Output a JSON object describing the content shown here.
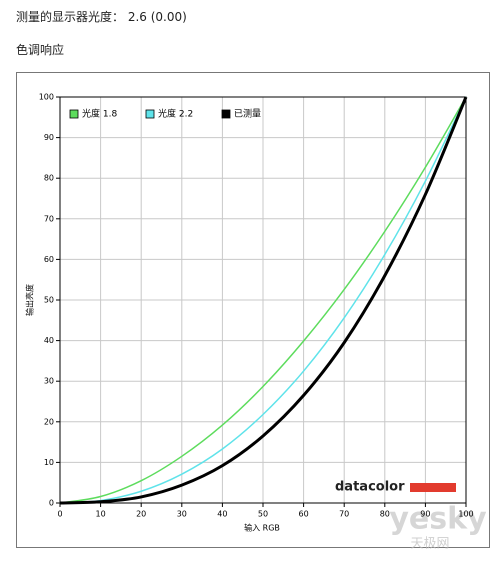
{
  "header": {
    "title": "测量的显示器光度：",
    "value": "2.6 (0.00)",
    "section": "色调响应"
  },
  "chart_data": {
    "type": "line",
    "xlabel": "输入 RGB",
    "ylabel": "输出亮度",
    "x": [
      0,
      10,
      20,
      30,
      40,
      50,
      60,
      70,
      80,
      90,
      100
    ],
    "series": [
      {
        "name": "光度 1.8",
        "color": "#5ddc5d",
        "values": [
          0,
          1.6,
          5.5,
          11.5,
          19.2,
          28.7,
          39.9,
          52.6,
          66.9,
          82.7,
          100
        ]
      },
      {
        "name": "光度 2.2",
        "color": "#5fe3ea",
        "values": [
          0,
          0.6,
          2.9,
          7.1,
          13.3,
          21.8,
          32.5,
          45.6,
          61.2,
          79.3,
          100
        ]
      },
      {
        "name": "已测量",
        "color": "#000000",
        "values": [
          0,
          0.3,
          1.5,
          4.4,
          9.2,
          16.5,
          26.5,
          39.5,
          56.0,
          76.0,
          100
        ]
      }
    ],
    "xlim": [
      0,
      100
    ],
    "ylim": [
      0,
      100
    ],
    "xticks": [
      0,
      10,
      20,
      30,
      40,
      50,
      60,
      70,
      80,
      90,
      100
    ],
    "yticks": [
      0,
      10,
      20,
      30,
      40,
      50,
      60,
      70,
      80,
      90,
      100
    ],
    "grid": true,
    "legend": "top-left",
    "logo": "datacolor",
    "watermark": "yesky",
    "watermark_sub": "天极网"
  }
}
